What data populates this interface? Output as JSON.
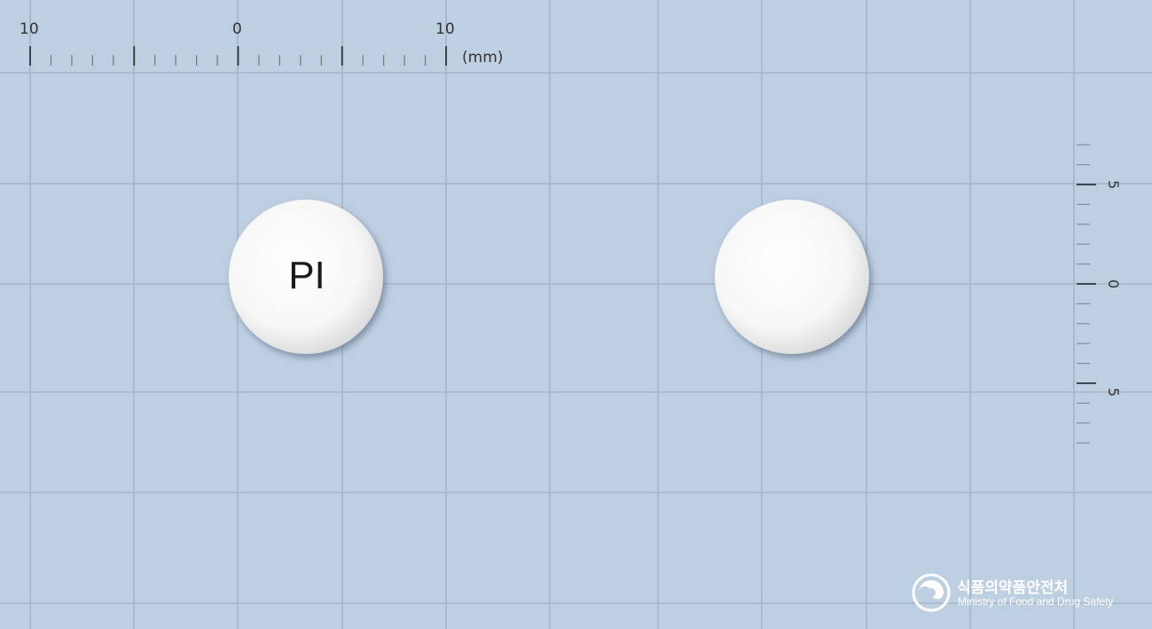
{
  "image": {
    "kind": "pill identification photo",
    "background_color": "#bfcfe2",
    "grid_color": "#9fb2c8"
  },
  "ruler_horizontal": {
    "tick_labels": [
      "10",
      "0",
      "10"
    ],
    "unit_label": "(mm)"
  },
  "ruler_vertical": {
    "tick_labels": [
      "5",
      "0",
      "5"
    ]
  },
  "pills": [
    {
      "side": "front",
      "imprint": "PI",
      "color": "#ffffff",
      "shape": "round"
    },
    {
      "side": "back",
      "imprint": "",
      "color": "#ffffff",
      "shape": "round"
    }
  ],
  "watermark": {
    "korean": "식품의약품안전처",
    "english": "Ministry of Food and Drug Safety"
  }
}
